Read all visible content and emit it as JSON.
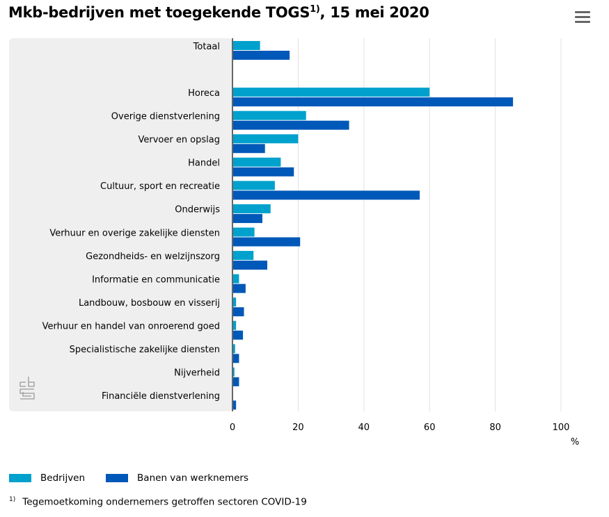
{
  "title": {
    "main": "Mkb-bedrijven met toegekende TOGS",
    "sup": "1)",
    "suffix": ", 15 mei 2020"
  },
  "menu_icon": "hamburger-menu-icon",
  "logo": "cbs-logo",
  "colors": {
    "bedrijven": "#00a1cd",
    "banen": "#0058b8",
    "plot_bg": "#efefef",
    "grid": "#e0e0e0",
    "axis": "#666666"
  },
  "chart_data": {
    "type": "bar",
    "orientation": "horizontal",
    "title": "Mkb-bedrijven met toegekende TOGS1), 15 mei 2020",
    "xlabel": "%",
    "xlim": [
      0,
      100
    ],
    "xticks": [
      "0",
      "20",
      "40",
      "60",
      "80",
      "100"
    ],
    "grid": true,
    "legend_placement": "bottom-left",
    "categories": [
      "Totaal",
      "",
      "Horeca",
      "Overige dienstverlening",
      "Vervoer en opslag",
      "Handel",
      "Cultuur, sport en recreatie",
      "Onderwijs",
      "Verhuur en overige zakelijke diensten",
      "Gezondheids- en welzijnszorg",
      "Informatie en communicatie",
      "Landbouw, bosbouw en visserij",
      "Verhuur en handel van onroerend goed",
      "Specialistische zakelijke diensten",
      "Nijverheid",
      "Financiële dienstverlening"
    ],
    "series": [
      {
        "name": "Bedrijven",
        "values": [
          8.4,
          null,
          60.0,
          22.4,
          20.0,
          14.7,
          12.9,
          11.6,
          6.7,
          6.4,
          2.0,
          1.1,
          1.1,
          0.8,
          0.6,
          0.1
        ]
      },
      {
        "name": "Banen van werknemers",
        "values": [
          17.4,
          null,
          85.4,
          35.5,
          9.9,
          18.7,
          57.0,
          9.1,
          20.6,
          10.6,
          4.0,
          3.5,
          3.2,
          2.0,
          2.0,
          1.1
        ]
      }
    ]
  },
  "footnote": {
    "marker": "1)",
    "text": "Tegemoetkoming ondernemers getroffen sectoren COVID-19"
  }
}
